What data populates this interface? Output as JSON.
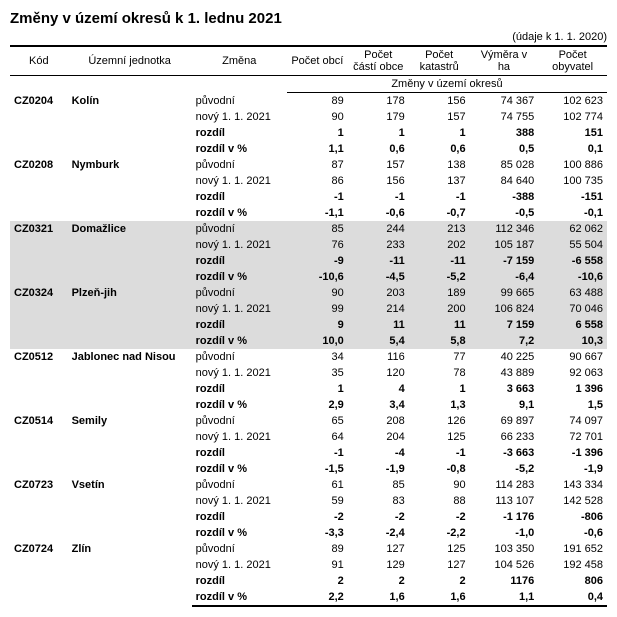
{
  "title": "Změny v území okresů k 1. lednu 2021",
  "subtitle": "(údaje k 1. 1. 2020)",
  "headers": {
    "kod": "Kód",
    "jednotka": "Územní jednotka",
    "zmena": "Změna",
    "obci": "Počet obcí",
    "casti": "Počet částí obce",
    "katastru": "Počet katastrů",
    "vymera": "Výměra v ha",
    "obyvatel": "Počet obyvatel",
    "span": "Změny v území okresů"
  },
  "labels": {
    "puvodni": "původní",
    "novy": "nový 1. 1. 2021",
    "rozdil": "rozdíl",
    "rozdilp": "rozdíl v %"
  },
  "rows": [
    {
      "kod": "CZ0204",
      "jedn": "Kolín",
      "shaded": false,
      "puvodni": [
        "89",
        "178",
        "156",
        "74 367",
        "102 623"
      ],
      "novy": [
        "90",
        "179",
        "157",
        "74 755",
        "102 774"
      ],
      "rozdil": [
        "1",
        "1",
        "1",
        "388",
        "151"
      ],
      "rozdilp": [
        "1,1",
        "0,6",
        "0,6",
        "0,5",
        "0,1"
      ]
    },
    {
      "kod": "CZ0208",
      "jedn": "Nymburk",
      "shaded": false,
      "puvodni": [
        "87",
        "157",
        "138",
        "85 028",
        "100 886"
      ],
      "novy": [
        "86",
        "156",
        "137",
        "84 640",
        "100 735"
      ],
      "rozdil": [
        "-1",
        "-1",
        "-1",
        "-388",
        "-151"
      ],
      "rozdilp": [
        "-1,1",
        "-0,6",
        "-0,7",
        "-0,5",
        "-0,1"
      ]
    },
    {
      "kod": "CZ0321",
      "jedn": "Domažlice",
      "shaded": true,
      "puvodni": [
        "85",
        "244",
        "213",
        "112 346",
        "62 062"
      ],
      "novy": [
        "76",
        "233",
        "202",
        "105 187",
        "55 504"
      ],
      "rozdil": [
        "-9",
        "-11",
        "-11",
        "-7 159",
        "-6 558"
      ],
      "rozdilp": [
        "-10,6",
        "-4,5",
        "-5,2",
        "-6,4",
        "-10,6"
      ]
    },
    {
      "kod": "CZ0324",
      "jedn": "Plzeň-jih",
      "shaded": true,
      "puvodni": [
        "90",
        "203",
        "189",
        "99 665",
        "63 488"
      ],
      "novy": [
        "99",
        "214",
        "200",
        "106 824",
        "70 046"
      ],
      "rozdil": [
        "9",
        "11",
        "11",
        "7 159",
        "6 558"
      ],
      "rozdilp": [
        "10,0",
        "5,4",
        "5,8",
        "7,2",
        "10,3"
      ]
    },
    {
      "kod": "CZ0512",
      "jedn": "Jablonec nad Nisou",
      "shaded": false,
      "puvodni": [
        "34",
        "116",
        "77",
        "40 225",
        "90 667"
      ],
      "novy": [
        "35",
        "120",
        "78",
        "43 889",
        "92 063"
      ],
      "rozdil": [
        "1",
        "4",
        "1",
        "3 663",
        "1 396"
      ],
      "rozdilp": [
        "2,9",
        "3,4",
        "1,3",
        "9,1",
        "1,5"
      ]
    },
    {
      "kod": "CZ0514",
      "jedn": "Semily",
      "shaded": false,
      "puvodni": [
        "65",
        "208",
        "126",
        "69 897",
        "74 097"
      ],
      "novy": [
        "64",
        "204",
        "125",
        "66 233",
        "72 701"
      ],
      "rozdil": [
        "-1",
        "-4",
        "-1",
        "-3 663",
        "-1 396"
      ],
      "rozdilp": [
        "-1,5",
        "-1,9",
        "-0,8",
        "-5,2",
        "-1,9"
      ]
    },
    {
      "kod": "CZ0723",
      "jedn": "Vsetín",
      "shaded": false,
      "puvodni": [
        "61",
        "85",
        "90",
        "114 283",
        "143 334"
      ],
      "novy": [
        "59",
        "83",
        "88",
        "113 107",
        "142 528"
      ],
      "rozdil": [
        "-2",
        "-2",
        "-2",
        "-1 176",
        "-806"
      ],
      "rozdilp": [
        "-3,3",
        "-2,4",
        "-2,2",
        "-1,0",
        "-0,6"
      ]
    },
    {
      "kod": "CZ0724",
      "jedn": "Zlín",
      "shaded": false,
      "puvodni": [
        "89",
        "127",
        "125",
        "103 350",
        "191 652"
      ],
      "novy": [
        "91",
        "129",
        "127",
        "104 526",
        "192 458"
      ],
      "rozdil": [
        "2",
        "2",
        "2",
        "1176",
        "806"
      ],
      "rozdilp": [
        "2,2",
        "1,6",
        "1,6",
        "1,1",
        "0,4"
      ]
    }
  ]
}
